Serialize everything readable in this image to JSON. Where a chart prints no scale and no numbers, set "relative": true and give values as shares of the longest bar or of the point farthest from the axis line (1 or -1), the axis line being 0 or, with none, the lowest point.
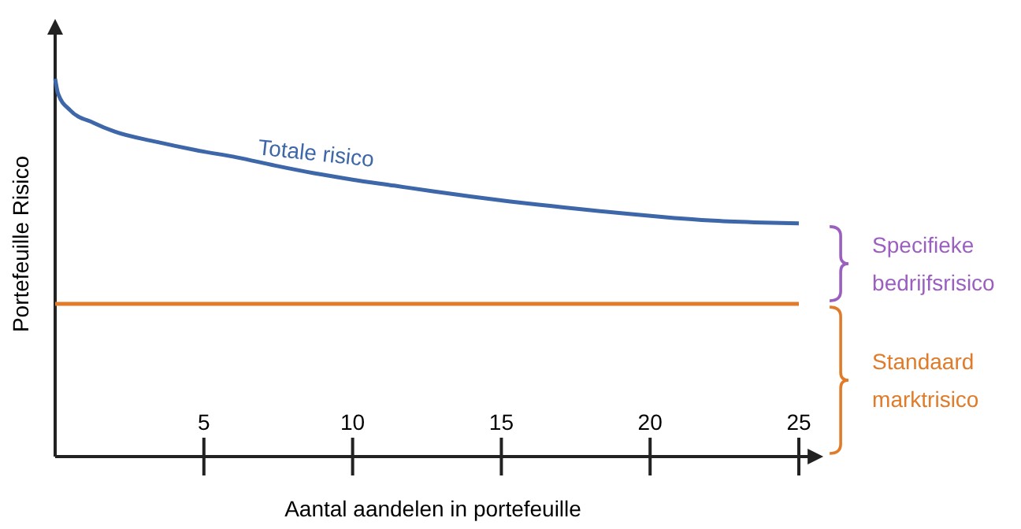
{
  "chart_data": {
    "type": "line",
    "relative": true,
    "xlabel": "Aantal aandelen in portefeuille",
    "ylabel": "Portefeuille Risico",
    "xlim": [
      0,
      25.4
    ],
    "xticks": [
      5,
      10,
      15,
      20,
      25
    ],
    "grid": false,
    "marker": "none",
    "line_style": "solid",
    "series": [
      {
        "name": "Totale risico",
        "color": "#3d67a8",
        "x": [
          0,
          0.1,
          0.5,
          1.3,
          2,
          3.4,
          4.8,
          6.1,
          7.4,
          8.7,
          10,
          11.4,
          12.7,
          14,
          15.3,
          16.7,
          18,
          19.3,
          20.6,
          22,
          23.5,
          25
        ],
        "values": [
          1,
          0.96,
          0.917,
          0.883,
          0.86,
          0.833,
          0.81,
          0.792,
          0.77,
          0.75,
          0.733,
          0.717,
          0.702,
          0.688,
          0.675,
          0.663,
          0.652,
          0.642,
          0.633,
          0.625,
          0.62,
          0.617
        ]
      },
      {
        "color": "#e07b2a",
        "x": [
          0,
          25
        ],
        "values": [
          0.404,
          0.404
        ]
      }
    ],
    "annotations": [
      "Specifieke bedrijfsrisico",
      "Standaard marktrisico"
    ]
  }
}
